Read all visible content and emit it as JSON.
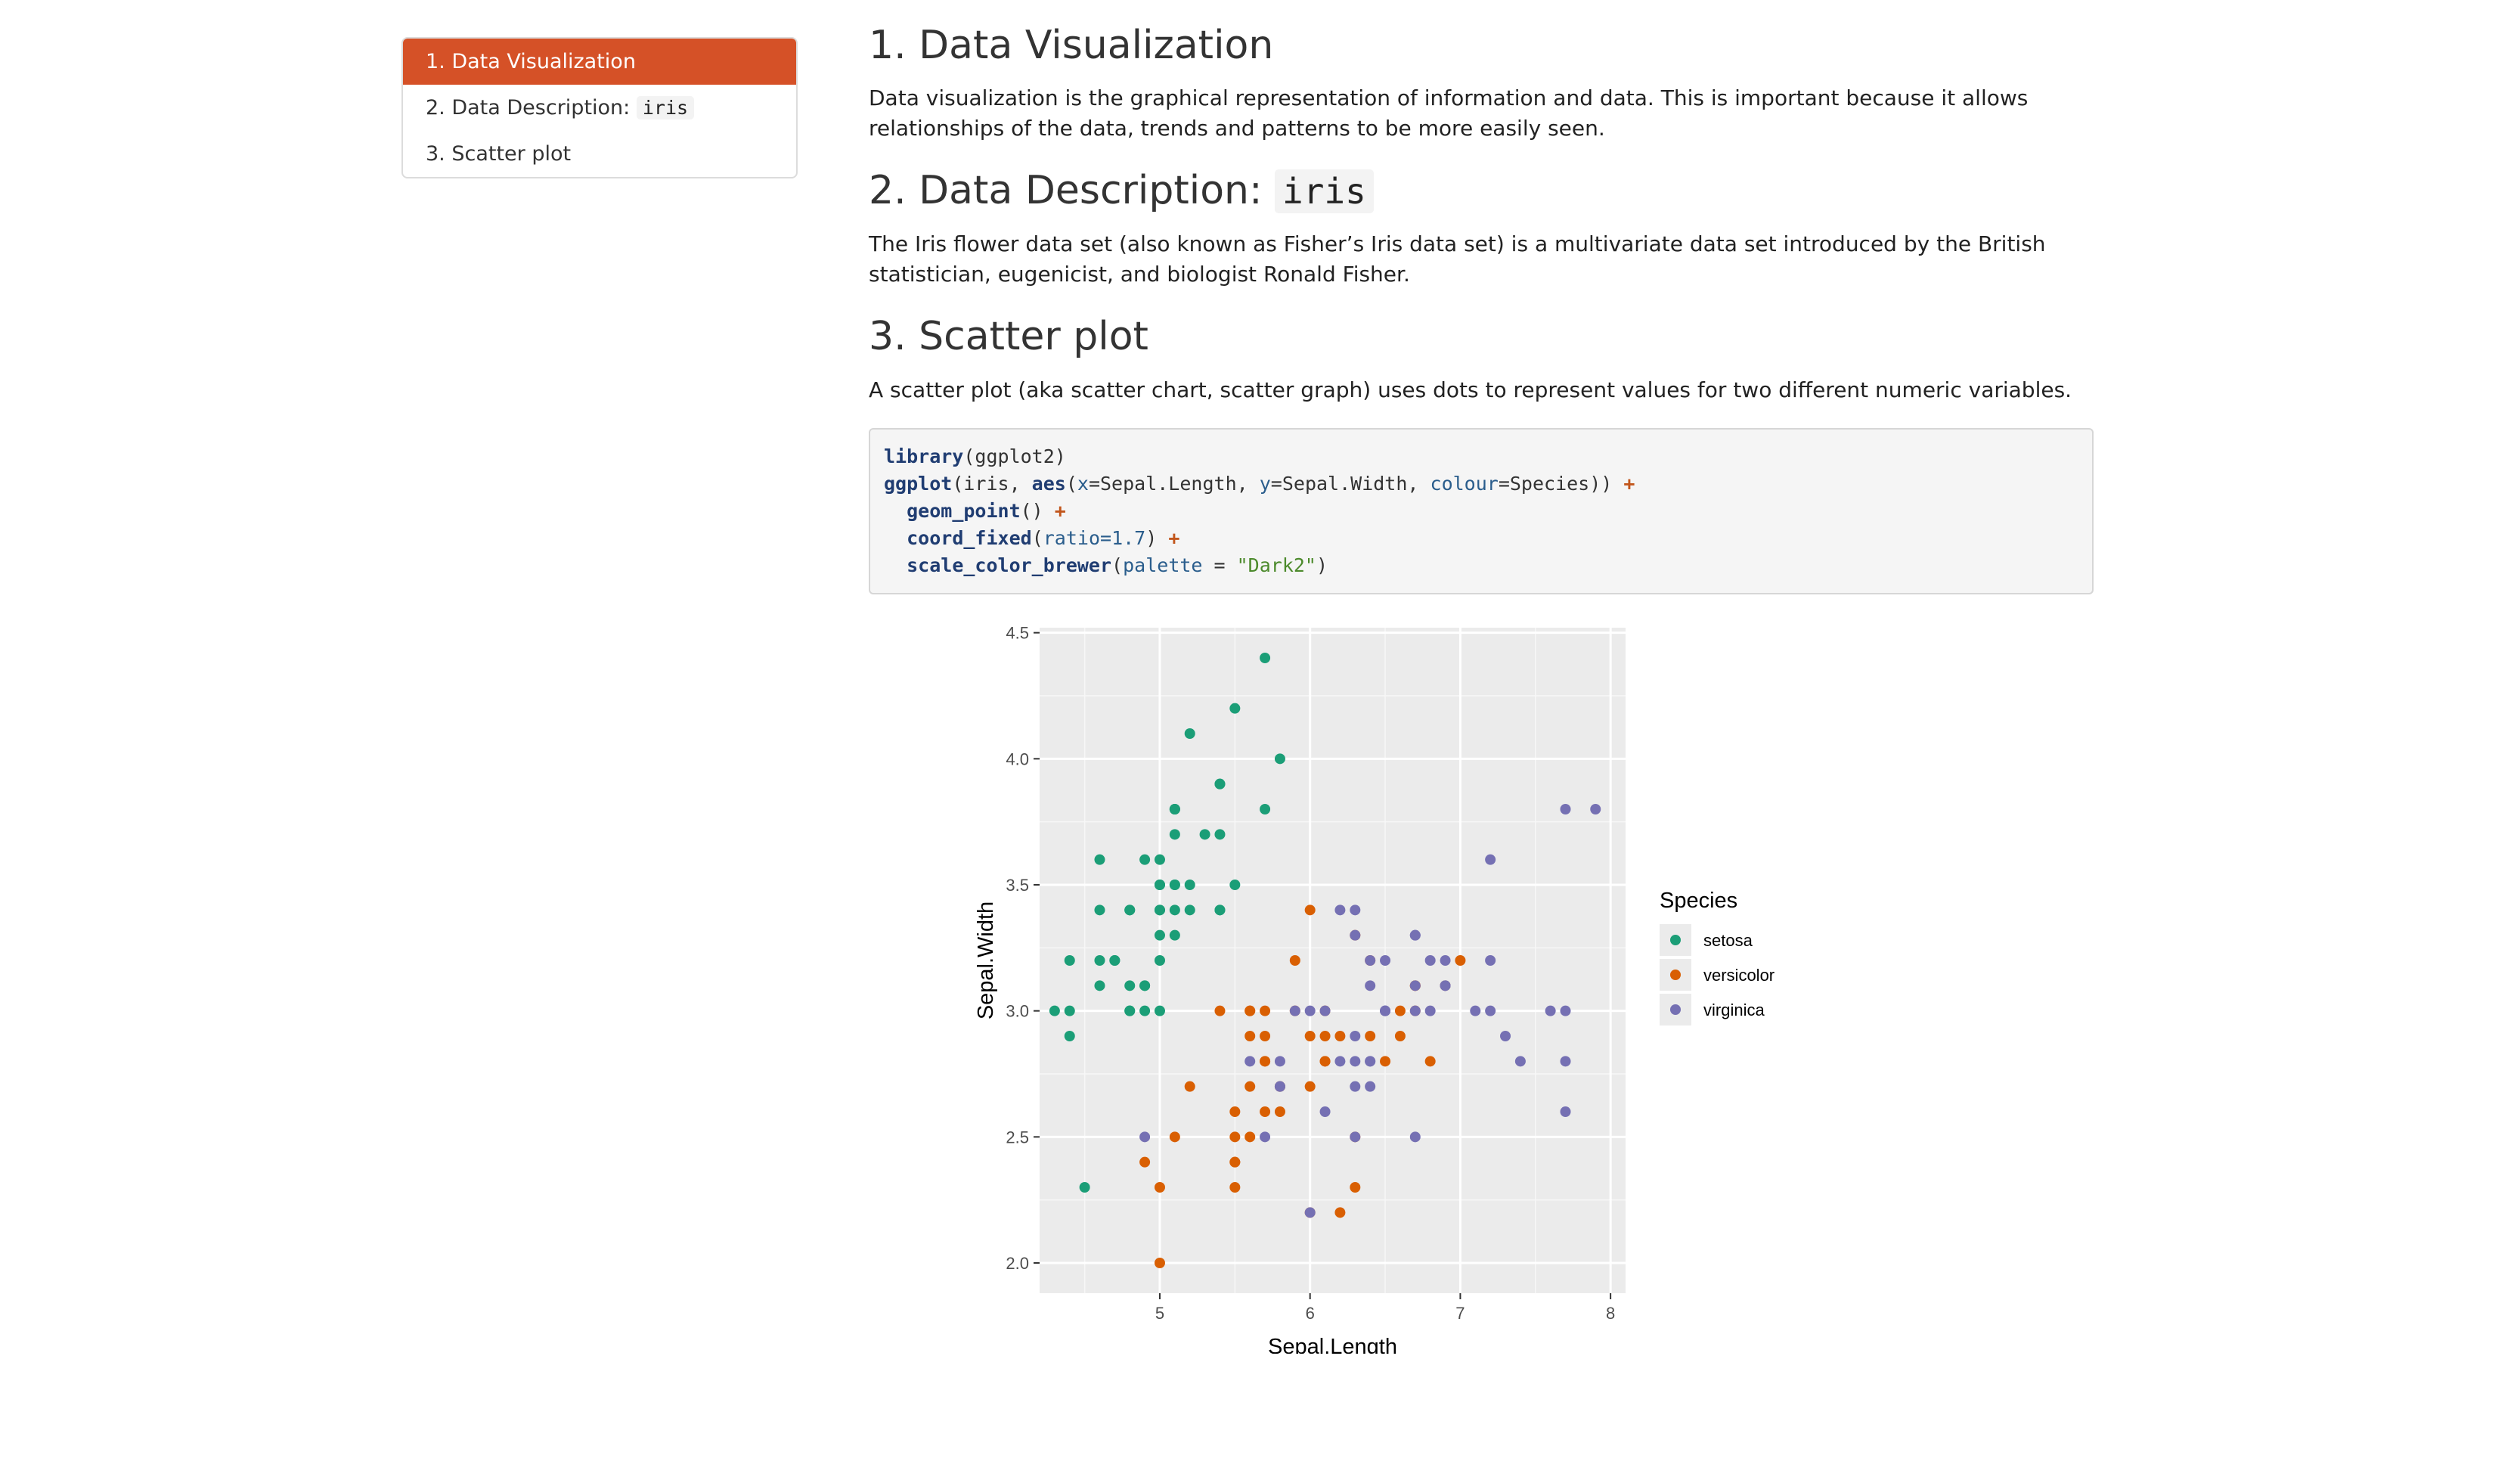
{
  "toc": {
    "items": [
      {
        "label": "1. Data Visualization"
      },
      {
        "label": "2. Data Description: ",
        "code": "iris"
      },
      {
        "label": "3. Scatter plot"
      }
    ]
  },
  "section1": {
    "title": "1. Data Visualization",
    "body": "Data visualization is the graphical representation of information and data. This is important because it allows relationships of the data, trends and patterns to be more easily seen."
  },
  "section2": {
    "title": "2. Data Description: ",
    "title_code": "iris",
    "body": "The Iris flower data set (also known as Fisher’s Iris data set) is a multivariate data set introduced by the British statistician, eugenicist, and biologist Ronald Fisher."
  },
  "section3": {
    "title": "3. Scatter plot",
    "body": "A scatter plot (aka scatter chart, scatter graph) uses dots to represent values for two different numeric variables."
  },
  "code": {
    "line1_fn": "library",
    "line1_rest": "(ggplot2)",
    "line2_fn": "ggplot",
    "line2_a": "(iris, ",
    "line2_aes": "aes",
    "line2_b": "(",
    "line2_x": "x",
    "line2_c": "=Sepal.Length, ",
    "line2_y": "y",
    "line2_d": "=Sepal.Width, ",
    "line2_col": "colour",
    "line2_e": "=Species)) ",
    "plus": "+",
    "line3_fn": "geom_point",
    "line3_rest": "() ",
    "line4_fn": "coord_fixed",
    "line4_a": "(",
    "line4_arg": "ratio",
    "line4_num": "=1.7",
    "line4_b": ") ",
    "line5_fn": "scale_color_brewer",
    "line5_a": "(",
    "line5_arg": "palette",
    "line5_b": " = ",
    "line5_str": "\"Dark2\"",
    "line5_c": ")"
  },
  "colors": {
    "accent": "#d55127",
    "setosa": "#1b9e77",
    "versicolor": "#d95f02",
    "virginica": "#7570b3",
    "panel": "#ebebeb"
  },
  "chart_data": {
    "type": "scatter",
    "xlabel": "Sepal.Length",
    "ylabel": "Sepal.Width",
    "xlim": [
      4.2,
      8.1
    ],
    "ylim": [
      1.88,
      4.52
    ],
    "x_ticks": [
      "5",
      "6",
      "7",
      "8"
    ],
    "y_ticks": [
      "2.0",
      "2.5",
      "3.0",
      "3.5",
      "4.0",
      "4.5"
    ],
    "legend_title": "Species",
    "legend_position": "right",
    "series": [
      {
        "name": "setosa",
        "points": [
          [
            5.1,
            3.5
          ],
          [
            4.9,
            3.0
          ],
          [
            4.7,
            3.2
          ],
          [
            4.6,
            3.1
          ],
          [
            5.0,
            3.6
          ],
          [
            5.4,
            3.9
          ],
          [
            4.6,
            3.4
          ],
          [
            5.0,
            3.4
          ],
          [
            4.4,
            2.9
          ],
          [
            4.9,
            3.1
          ],
          [
            5.4,
            3.7
          ],
          [
            4.8,
            3.4
          ],
          [
            4.8,
            3.0
          ],
          [
            4.3,
            3.0
          ],
          [
            5.8,
            4.0
          ],
          [
            5.7,
            4.4
          ],
          [
            5.4,
            3.9
          ],
          [
            5.1,
            3.5
          ],
          [
            5.7,
            3.8
          ],
          [
            5.1,
            3.8
          ],
          [
            5.4,
            3.4
          ],
          [
            5.1,
            3.7
          ],
          [
            4.6,
            3.6
          ],
          [
            5.1,
            3.3
          ],
          [
            4.8,
            3.4
          ],
          [
            5.0,
            3.0
          ],
          [
            5.0,
            3.4
          ],
          [
            5.2,
            3.5
          ],
          [
            5.2,
            3.4
          ],
          [
            4.7,
            3.2
          ],
          [
            4.8,
            3.1
          ],
          [
            5.4,
            3.4
          ],
          [
            5.2,
            4.1
          ],
          [
            5.5,
            4.2
          ],
          [
            4.9,
            3.1
          ],
          [
            5.0,
            3.2
          ],
          [
            5.5,
            3.5
          ],
          [
            4.9,
            3.6
          ],
          [
            4.4,
            3.0
          ],
          [
            5.1,
            3.4
          ],
          [
            5.0,
            3.5
          ],
          [
            4.5,
            2.3
          ],
          [
            4.4,
            3.2
          ],
          [
            5.0,
            3.5
          ],
          [
            5.1,
            3.8
          ],
          [
            4.8,
            3.0
          ],
          [
            5.1,
            3.8
          ],
          [
            4.6,
            3.2
          ],
          [
            5.3,
            3.7
          ],
          [
            5.0,
            3.3
          ]
        ]
      },
      {
        "name": "versicolor",
        "points": [
          [
            7.0,
            3.2
          ],
          [
            6.4,
            3.2
          ],
          [
            6.9,
            3.1
          ],
          [
            5.5,
            2.3
          ],
          [
            6.5,
            2.8
          ],
          [
            5.7,
            2.8
          ],
          [
            6.3,
            3.3
          ],
          [
            4.9,
            2.4
          ],
          [
            6.6,
            2.9
          ],
          [
            5.2,
            2.7
          ],
          [
            5.0,
            2.0
          ],
          [
            5.9,
            3.0
          ],
          [
            6.0,
            2.2
          ],
          [
            6.1,
            2.9
          ],
          [
            5.6,
            2.9
          ],
          [
            6.7,
            3.1
          ],
          [
            5.6,
            3.0
          ],
          [
            5.8,
            2.7
          ],
          [
            6.2,
            2.2
          ],
          [
            5.6,
            2.5
          ],
          [
            5.9,
            3.2
          ],
          [
            6.1,
            2.8
          ],
          [
            6.3,
            2.5
          ],
          [
            6.1,
            2.8
          ],
          [
            6.4,
            2.9
          ],
          [
            6.6,
            3.0
          ],
          [
            6.8,
            2.8
          ],
          [
            6.7,
            3.0
          ],
          [
            6.0,
            2.9
          ],
          [
            5.7,
            2.6
          ],
          [
            5.5,
            2.4
          ],
          [
            5.5,
            2.4
          ],
          [
            5.8,
            2.7
          ],
          [
            6.0,
            2.7
          ],
          [
            5.4,
            3.0
          ],
          [
            6.0,
            3.4
          ],
          [
            6.7,
            3.1
          ],
          [
            6.3,
            2.3
          ],
          [
            5.6,
            3.0
          ],
          [
            5.5,
            2.5
          ],
          [
            5.5,
            2.6
          ],
          [
            6.1,
            3.0
          ],
          [
            5.8,
            2.6
          ],
          [
            5.0,
            2.3
          ],
          [
            5.6,
            2.7
          ],
          [
            5.7,
            3.0
          ],
          [
            5.7,
            2.9
          ],
          [
            6.2,
            2.9
          ],
          [
            5.1,
            2.5
          ],
          [
            5.7,
            2.8
          ]
        ]
      },
      {
        "name": "virginica",
        "points": [
          [
            6.3,
            3.3
          ],
          [
            5.8,
            2.7
          ],
          [
            7.1,
            3.0
          ],
          [
            6.3,
            2.9
          ],
          [
            6.5,
            3.0
          ],
          [
            7.6,
            3.0
          ],
          [
            4.9,
            2.5
          ],
          [
            7.3,
            2.9
          ],
          [
            6.7,
            2.5
          ],
          [
            7.2,
            3.6
          ],
          [
            6.5,
            3.2
          ],
          [
            6.4,
            2.7
          ],
          [
            6.8,
            3.0
          ],
          [
            5.7,
            2.5
          ],
          [
            5.8,
            2.8
          ],
          [
            6.4,
            3.2
          ],
          [
            6.5,
            3.0
          ],
          [
            7.7,
            3.8
          ],
          [
            7.7,
            2.6
          ],
          [
            6.0,
            2.2
          ],
          [
            6.9,
            3.2
          ],
          [
            5.6,
            2.8
          ],
          [
            7.7,
            2.8
          ],
          [
            6.3,
            2.7
          ],
          [
            6.7,
            3.3
          ],
          [
            7.2,
            3.2
          ],
          [
            6.2,
            2.8
          ],
          [
            6.1,
            3.0
          ],
          [
            6.4,
            2.8
          ],
          [
            7.2,
            3.0
          ],
          [
            7.4,
            2.8
          ],
          [
            7.9,
            3.8
          ],
          [
            6.4,
            2.8
          ],
          [
            6.3,
            2.8
          ],
          [
            6.1,
            2.6
          ],
          [
            7.7,
            3.0
          ],
          [
            6.3,
            3.4
          ],
          [
            6.4,
            3.1
          ],
          [
            6.0,
            3.0
          ],
          [
            6.9,
            3.1
          ],
          [
            6.7,
            3.1
          ],
          [
            6.9,
            3.1
          ],
          [
            5.8,
            2.7
          ],
          [
            6.8,
            3.2
          ],
          [
            6.7,
            3.3
          ],
          [
            6.7,
            3.0
          ],
          [
            6.3,
            2.5
          ],
          [
            6.5,
            3.0
          ],
          [
            6.2,
            3.4
          ],
          [
            5.9,
            3.0
          ]
        ]
      }
    ]
  }
}
